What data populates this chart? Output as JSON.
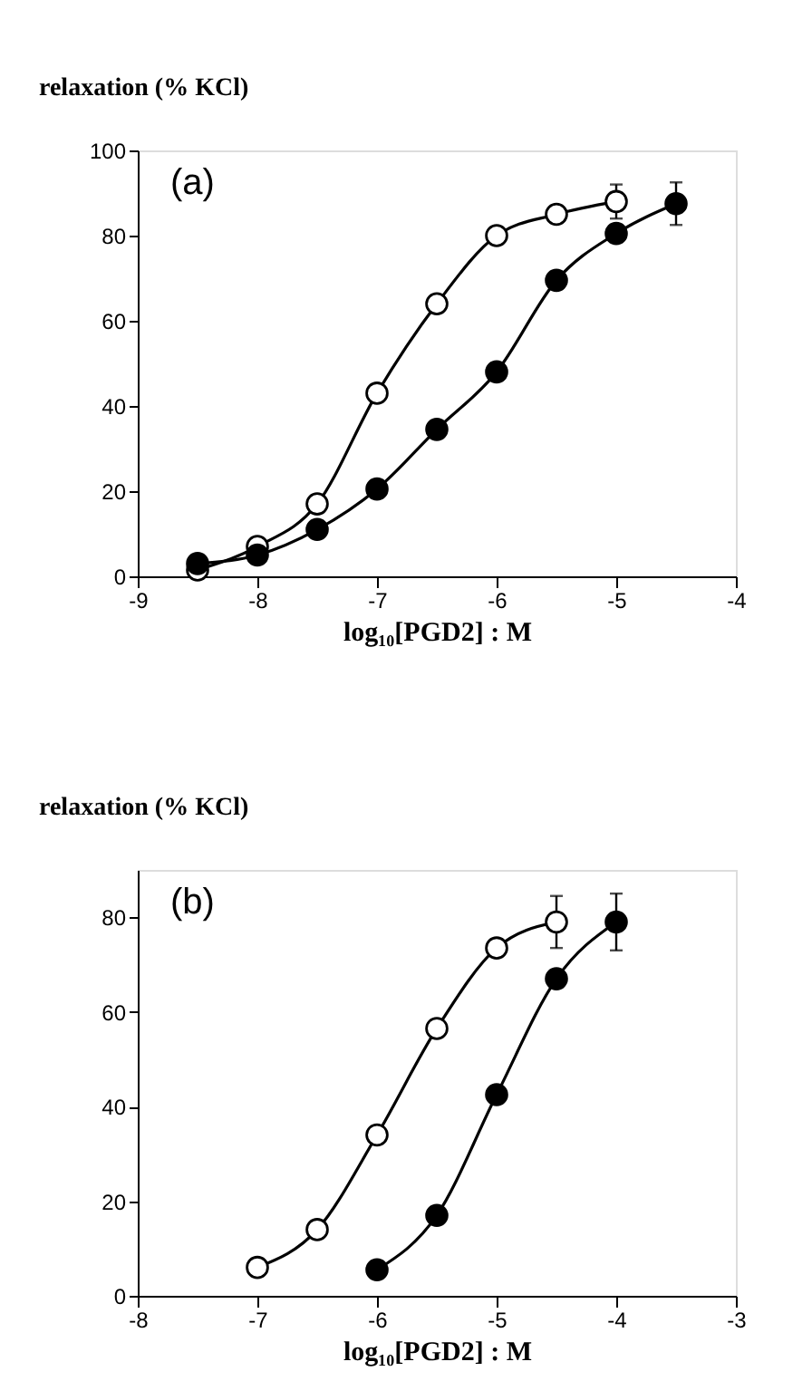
{
  "chart_data": [
    {
      "type": "line",
      "ylabel": "relaxation (% KCl)",
      "xlabel": "log₁₀[PGD2] : M",
      "annotations": [
        "(a)"
      ],
      "xlim": [
        -9,
        -4
      ],
      "xticks": [
        -9,
        -8,
        -7,
        -6,
        -5,
        -4
      ],
      "ylim": [
        0,
        100
      ],
      "yticks": [
        0,
        20,
        40,
        60,
        80,
        100
      ],
      "grid": false,
      "series": [
        {
          "type": "line",
          "color": "#000000",
          "x": [
            -8.5,
            -8,
            -7.5,
            -7,
            -6.5,
            -6,
            -5.5,
            -5
          ],
          "values": [
            1.5,
            7,
            17,
            43,
            64,
            80,
            85,
            88
          ]
        },
        {
          "type": "line",
          "color": "#000000",
          "x": [
            -8.5,
            -8,
            -7.5,
            -7,
            -6.5,
            -6,
            -5.5,
            -5,
            -4.5
          ],
          "values": [
            3,
            5,
            11,
            20.5,
            34.5,
            48,
            69.5,
            80.5,
            87.5
          ]
        },
        {
          "type": "scatter",
          "color": "#ffffff",
          "marker": "circle",
          "x": [
            -8.5,
            -8,
            -7.5,
            -7,
            -6.5,
            -6,
            -5.5,
            -5
          ],
          "values": [
            1.5,
            7,
            17,
            43,
            64,
            80,
            85,
            88
          ],
          "errors": [
            null,
            null,
            null,
            null,
            null,
            null,
            null,
            4
          ]
        },
        {
          "type": "scatter",
          "color": "#000000",
          "marker": "circle",
          "x": [
            -8.5,
            -8,
            -7.5,
            -7,
            -6.5,
            -6,
            -5.5,
            -5,
            -4.5
          ],
          "values": [
            3,
            5,
            11,
            20.5,
            34.5,
            48,
            69.5,
            80.5,
            87.5
          ],
          "errors": [
            null,
            null,
            null,
            null,
            null,
            null,
            null,
            null,
            5
          ]
        }
      ]
    },
    {
      "type": "line",
      "ylabel": "relaxation (% KCl)",
      "xlabel": "log₁₀[PGD2] : M",
      "annotations": [
        "(b)"
      ],
      "xlim": [
        -8,
        -3
      ],
      "xticks": [
        -8,
        -7,
        -6,
        -5,
        -4,
        -3
      ],
      "ylim": [
        0,
        90
      ],
      "yticks": [
        0,
        20,
        40,
        60,
        80
      ],
      "grid": false,
      "series": [
        {
          "type": "line",
          "color": "#000000",
          "x": [
            -7,
            -6.5,
            -6,
            -5.5,
            -5,
            -4.5
          ],
          "values": [
            6,
            14,
            34,
            56.5,
            73.5,
            79
          ]
        },
        {
          "type": "line",
          "color": "#000000",
          "x": [
            -6,
            -5.5,
            -5,
            -4.5,
            -4
          ],
          "values": [
            5.5,
            17,
            42.5,
            67,
            79
          ]
        },
        {
          "type": "scatter",
          "color": "#ffffff",
          "marker": "circle",
          "x": [
            -7,
            -6.5,
            -6,
            -5.5,
            -5,
            -4.5
          ],
          "values": [
            6,
            14,
            34,
            56.5,
            73.5,
            79
          ],
          "errors": [
            null,
            null,
            null,
            null,
            null,
            5.5
          ]
        },
        {
          "type": "scatter",
          "color": "#000000",
          "marker": "circle",
          "x": [
            -6,
            -5.5,
            -5,
            -4.5,
            -4
          ],
          "values": [
            5.5,
            17,
            42.5,
            67,
            79
          ],
          "errors": [
            null,
            null,
            null,
            null,
            6
          ]
        }
      ]
    }
  ]
}
